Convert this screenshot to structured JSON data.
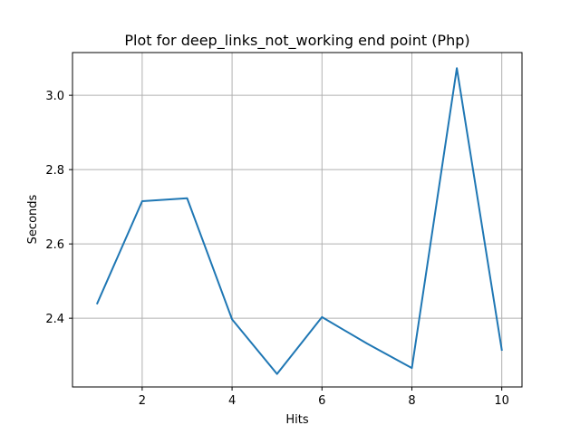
{
  "chart_data": {
    "type": "line",
    "title": "Plot for deep_links_not_working end point (Php)",
    "xlabel": "Hits",
    "ylabel": "Seconds",
    "xlim": [
      0.45,
      10.45
    ],
    "ylim": [
      2.215,
      3.115
    ],
    "x_ticks": [
      2,
      4,
      6,
      8,
      10
    ],
    "y_ticks": [
      2.4,
      2.6,
      2.8,
      3.0
    ],
    "x_tick_labels": [
      "2",
      "4",
      "6",
      "8",
      "10"
    ],
    "y_tick_labels": [
      "2.4",
      "2.6",
      "2.8",
      "3.0"
    ],
    "grid": true,
    "series": [
      {
        "color": "#1f77b4",
        "x": [
          1,
          2,
          3,
          4,
          5,
          6,
          7,
          8,
          9,
          10
        ],
        "y": [
          2.44,
          2.715,
          2.723,
          2.397,
          2.25,
          2.403,
          2.332,
          2.266,
          3.073,
          2.315
        ]
      }
    ]
  }
}
